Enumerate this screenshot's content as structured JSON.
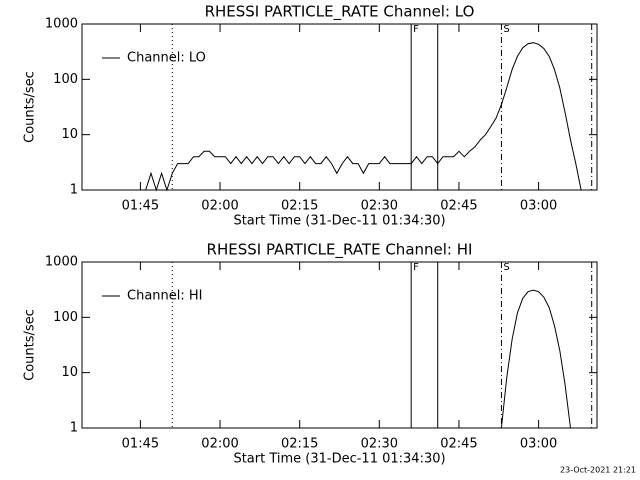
{
  "chart_data": [
    {
      "type": "line",
      "title": "RHESSI PARTICLE_RATE Channel: LO",
      "xlabel": "Start Time (31-Dec-11 01:34:30)",
      "ylabel": "Counts/sec",
      "log_y": true,
      "legend": "upper left",
      "xlim": [
        "01:34",
        "03:11"
      ],
      "ylim": [
        1,
        1000
      ],
      "xticks": [
        "01:45",
        "02:00",
        "02:15",
        "02:30",
        "02:45",
        "03:00"
      ],
      "yticks": [
        1,
        10,
        100,
        1000
      ],
      "vlines": [
        {
          "x": "01:51",
          "style": "dotted"
        },
        {
          "x": "02:36",
          "style": "solid",
          "label": "F"
        },
        {
          "x": "02:41",
          "style": "solid"
        },
        {
          "x": "02:53",
          "style": "dashdot",
          "label": "S"
        },
        {
          "x": "03:10",
          "style": "dashdot"
        }
      ],
      "x": [
        "01:46",
        "01:47",
        "01:48",
        "01:49",
        "01:50",
        "01:51",
        "01:52",
        "01:53",
        "01:54",
        "01:55",
        "01:56",
        "01:57",
        "01:58",
        "01:59",
        "02:00",
        "02:01",
        "02:02",
        "02:03",
        "02:04",
        "02:05",
        "02:06",
        "02:07",
        "02:08",
        "02:09",
        "02:10",
        "02:11",
        "02:12",
        "02:13",
        "02:14",
        "02:15",
        "02:16",
        "02:17",
        "02:18",
        "02:19",
        "02:20",
        "02:21",
        "02:22",
        "02:23",
        "02:24",
        "02:25",
        "02:26",
        "02:27",
        "02:28",
        "02:29",
        "02:30",
        "02:31",
        "02:32",
        "02:33",
        "02:34",
        "02:35",
        "02:36",
        "02:37",
        "02:38",
        "02:39",
        "02:40",
        "02:41",
        "02:42",
        "02:43",
        "02:44",
        "02:45",
        "02:46",
        "02:47",
        "02:48",
        "02:49",
        "02:50",
        "02:51",
        "02:52",
        "02:53",
        "02:54",
        "02:55",
        "02:56",
        "02:57",
        "02:58",
        "02:59",
        "03:00",
        "03:01",
        "03:02",
        "03:03",
        "03:04",
        "03:05",
        "03:06",
        "03:07",
        "03:08"
      ],
      "series": [
        {
          "name": "Channel: LO",
          "color": "#000000",
          "values": [
            1,
            2,
            1,
            2,
            1,
            2,
            3,
            3,
            3,
            4,
            4,
            5,
            5,
            4,
            4,
            4,
            3,
            4,
            3,
            4,
            3,
            4,
            3,
            4,
            4,
            3,
            4,
            3,
            4,
            4,
            3,
            4,
            3,
            3,
            4,
            3,
            2,
            3,
            4,
            3,
            3,
            2,
            3,
            3,
            3,
            4,
            3,
            3,
            3,
            3,
            3,
            4,
            3,
            4,
            4,
            3,
            4,
            4,
            4,
            5,
            4,
            5,
            6,
            8,
            10,
            14,
            20,
            35,
            70,
            150,
            260,
            370,
            440,
            460,
            430,
            360,
            260,
            150,
            70,
            25,
            8,
            3,
            1
          ]
        }
      ]
    },
    {
      "type": "line",
      "title": "RHESSI PARTICLE_RATE Channel: HI",
      "xlabel": "Start Time (31-Dec-11 01:34:30)",
      "ylabel": "Counts/sec",
      "log_y": true,
      "legend": "upper left",
      "xlim": [
        "01:34",
        "03:11"
      ],
      "ylim": [
        1,
        1000
      ],
      "xticks": [
        "01:45",
        "02:00",
        "02:15",
        "02:30",
        "02:45",
        "03:00"
      ],
      "yticks": [
        1,
        10,
        100,
        1000
      ],
      "vlines": [
        {
          "x": "01:51",
          "style": "dotted"
        },
        {
          "x": "02:36",
          "style": "solid",
          "label": "F"
        },
        {
          "x": "02:41",
          "style": "solid"
        },
        {
          "x": "02:53",
          "style": "dashdot",
          "label": "S"
        },
        {
          "x": "03:10",
          "style": "dashdot"
        }
      ],
      "x": [
        "02:53",
        "02:54",
        "02:55",
        "02:56",
        "02:57",
        "02:58",
        "02:59",
        "03:00",
        "03:01",
        "03:02",
        "03:03",
        "03:04",
        "03:05",
        "03:06"
      ],
      "series": [
        {
          "name": "Channel: HI",
          "color": "#000000",
          "values": [
            1,
            8,
            40,
            120,
            220,
            290,
            310,
            290,
            230,
            150,
            70,
            25,
            6,
            1
          ]
        }
      ]
    }
  ],
  "footer": "23-Oct-2021 21:21"
}
